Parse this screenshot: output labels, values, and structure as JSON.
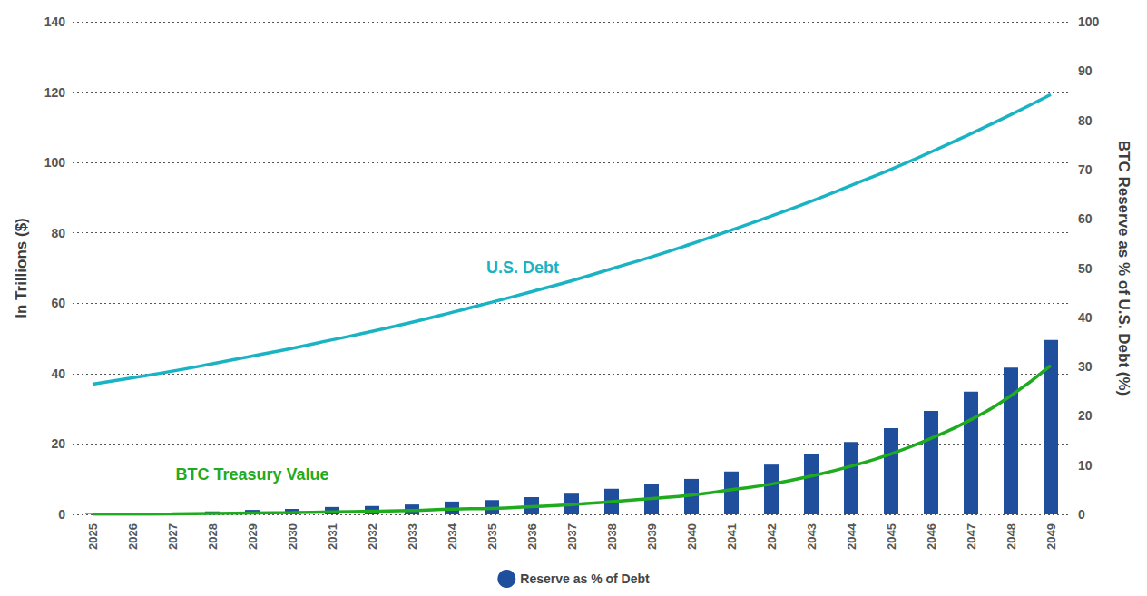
{
  "chart_data": {
    "type": "line",
    "categories": [
      "2025",
      "2026",
      "2027",
      "2028",
      "2029",
      "2030",
      "2031",
      "2032",
      "2033",
      "2034",
      "2035",
      "2036",
      "2037",
      "2038",
      "2039",
      "2040",
      "2041",
      "2042",
      "2043",
      "2044",
      "2045",
      "2046",
      "2047",
      "2048",
      "2049"
    ],
    "series": [
      {
        "name": "U.S. Debt",
        "type": "line",
        "color": "#1ab3c4",
        "values": [
          37,
          38.8,
          40.7,
          42.8,
          45,
          47.2,
          49.6,
          52,
          54.6,
          57.4,
          60.3,
          63.3,
          66.4,
          69.8,
          73.2,
          76.9,
          80.8,
          84.8,
          89,
          93.5,
          98.1,
          103,
          108.2,
          113.6,
          119.3
        ]
      },
      {
        "name": "BTC Treasury Value",
        "type": "line",
        "color": "#1fab1f",
        "values": [
          0.04,
          0.08,
          0.12,
          0.25,
          0.4,
          0.5,
          0.7,
          0.9,
          1.1,
          1.5,
          1.7,
          2.2,
          2.8,
          3.6,
          4.5,
          5.5,
          7.0,
          8.6,
          10.9,
          13.7,
          17.2,
          21.6,
          26.9,
          33.7,
          42.3
        ]
      },
      {
        "name": "Reserve as % of Debt",
        "type": "bar",
        "axis": "y2",
        "color": "#1f4e9c",
        "values": [
          0.1,
          0.2,
          0.3,
          0.6,
          0.9,
          1.1,
          1.5,
          1.7,
          2.0,
          2.6,
          2.9,
          3.5,
          4.2,
          5.2,
          6.1,
          7.2,
          8.7,
          10.1,
          12.2,
          14.7,
          17.5,
          21,
          24.9,
          29.8,
          35.4
        ]
      }
    ],
    "y_label": "In Trillions ($)",
    "y2_label": "BTC Reserve as % of U.S. Debt (%)",
    "ylim": [
      0,
      140
    ],
    "yticks": [
      0,
      20,
      40,
      60,
      80,
      100,
      120,
      140
    ],
    "y2lim": [
      0,
      100
    ],
    "y2ticks": [
      0,
      10,
      20,
      30,
      40,
      50,
      60,
      70,
      80,
      90,
      100
    ],
    "grid": true,
    "legend": "bottom"
  }
}
